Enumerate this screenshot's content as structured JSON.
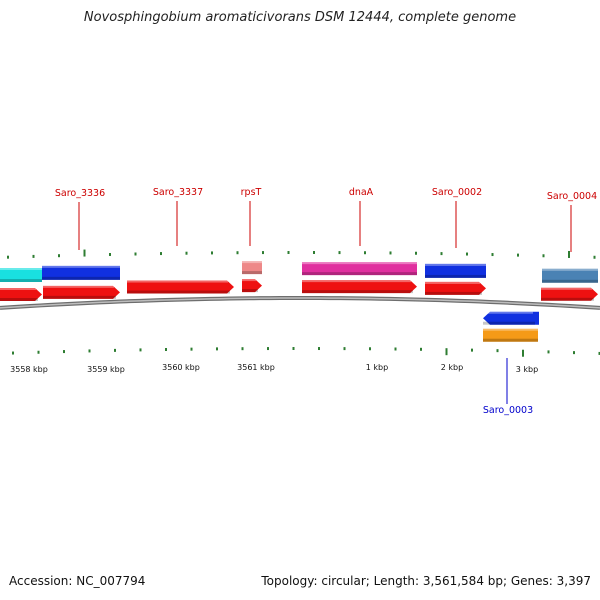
{
  "title": "Novosphingobium aromaticivorans DSM 12444, complete genome",
  "footer": {
    "accession": "Accession: NC_007794",
    "summary": "Topology: circular; Length: 3,561,584 bp; Genes: 3,397"
  },
  "colors": {
    "backbone": "#8c8c8c",
    "tick": "#2e7d32",
    "label_forward": "#cc0000",
    "label_reverse": "#0000cc",
    "cds": "#ee1111",
    "cyan": "#19e0e0",
    "blue": "#1030e0",
    "salmon": "#ee8888",
    "magenta": "#e0309f",
    "orange": "#f59a17",
    "steelblue": "#4a82b4"
  },
  "scale_labels": [
    "3558 kbp",
    "3559 kbp",
    "3560 kbp",
    "3561 kbp",
    "1 kbp",
    "2 kbp",
    "3 kbp"
  ],
  "genes": [
    {
      "label": "Saro_3336",
      "strand": "forward"
    },
    {
      "label": "Saro_3337",
      "strand": "forward"
    },
    {
      "label": "rpsT",
      "strand": "forward"
    },
    {
      "label": "dnaA",
      "strand": "forward"
    },
    {
      "label": "Saro_0002",
      "strand": "forward"
    },
    {
      "label": "Saro_0004",
      "strand": "forward"
    },
    {
      "label": "Saro_0003",
      "strand": "reverse"
    }
  ]
}
